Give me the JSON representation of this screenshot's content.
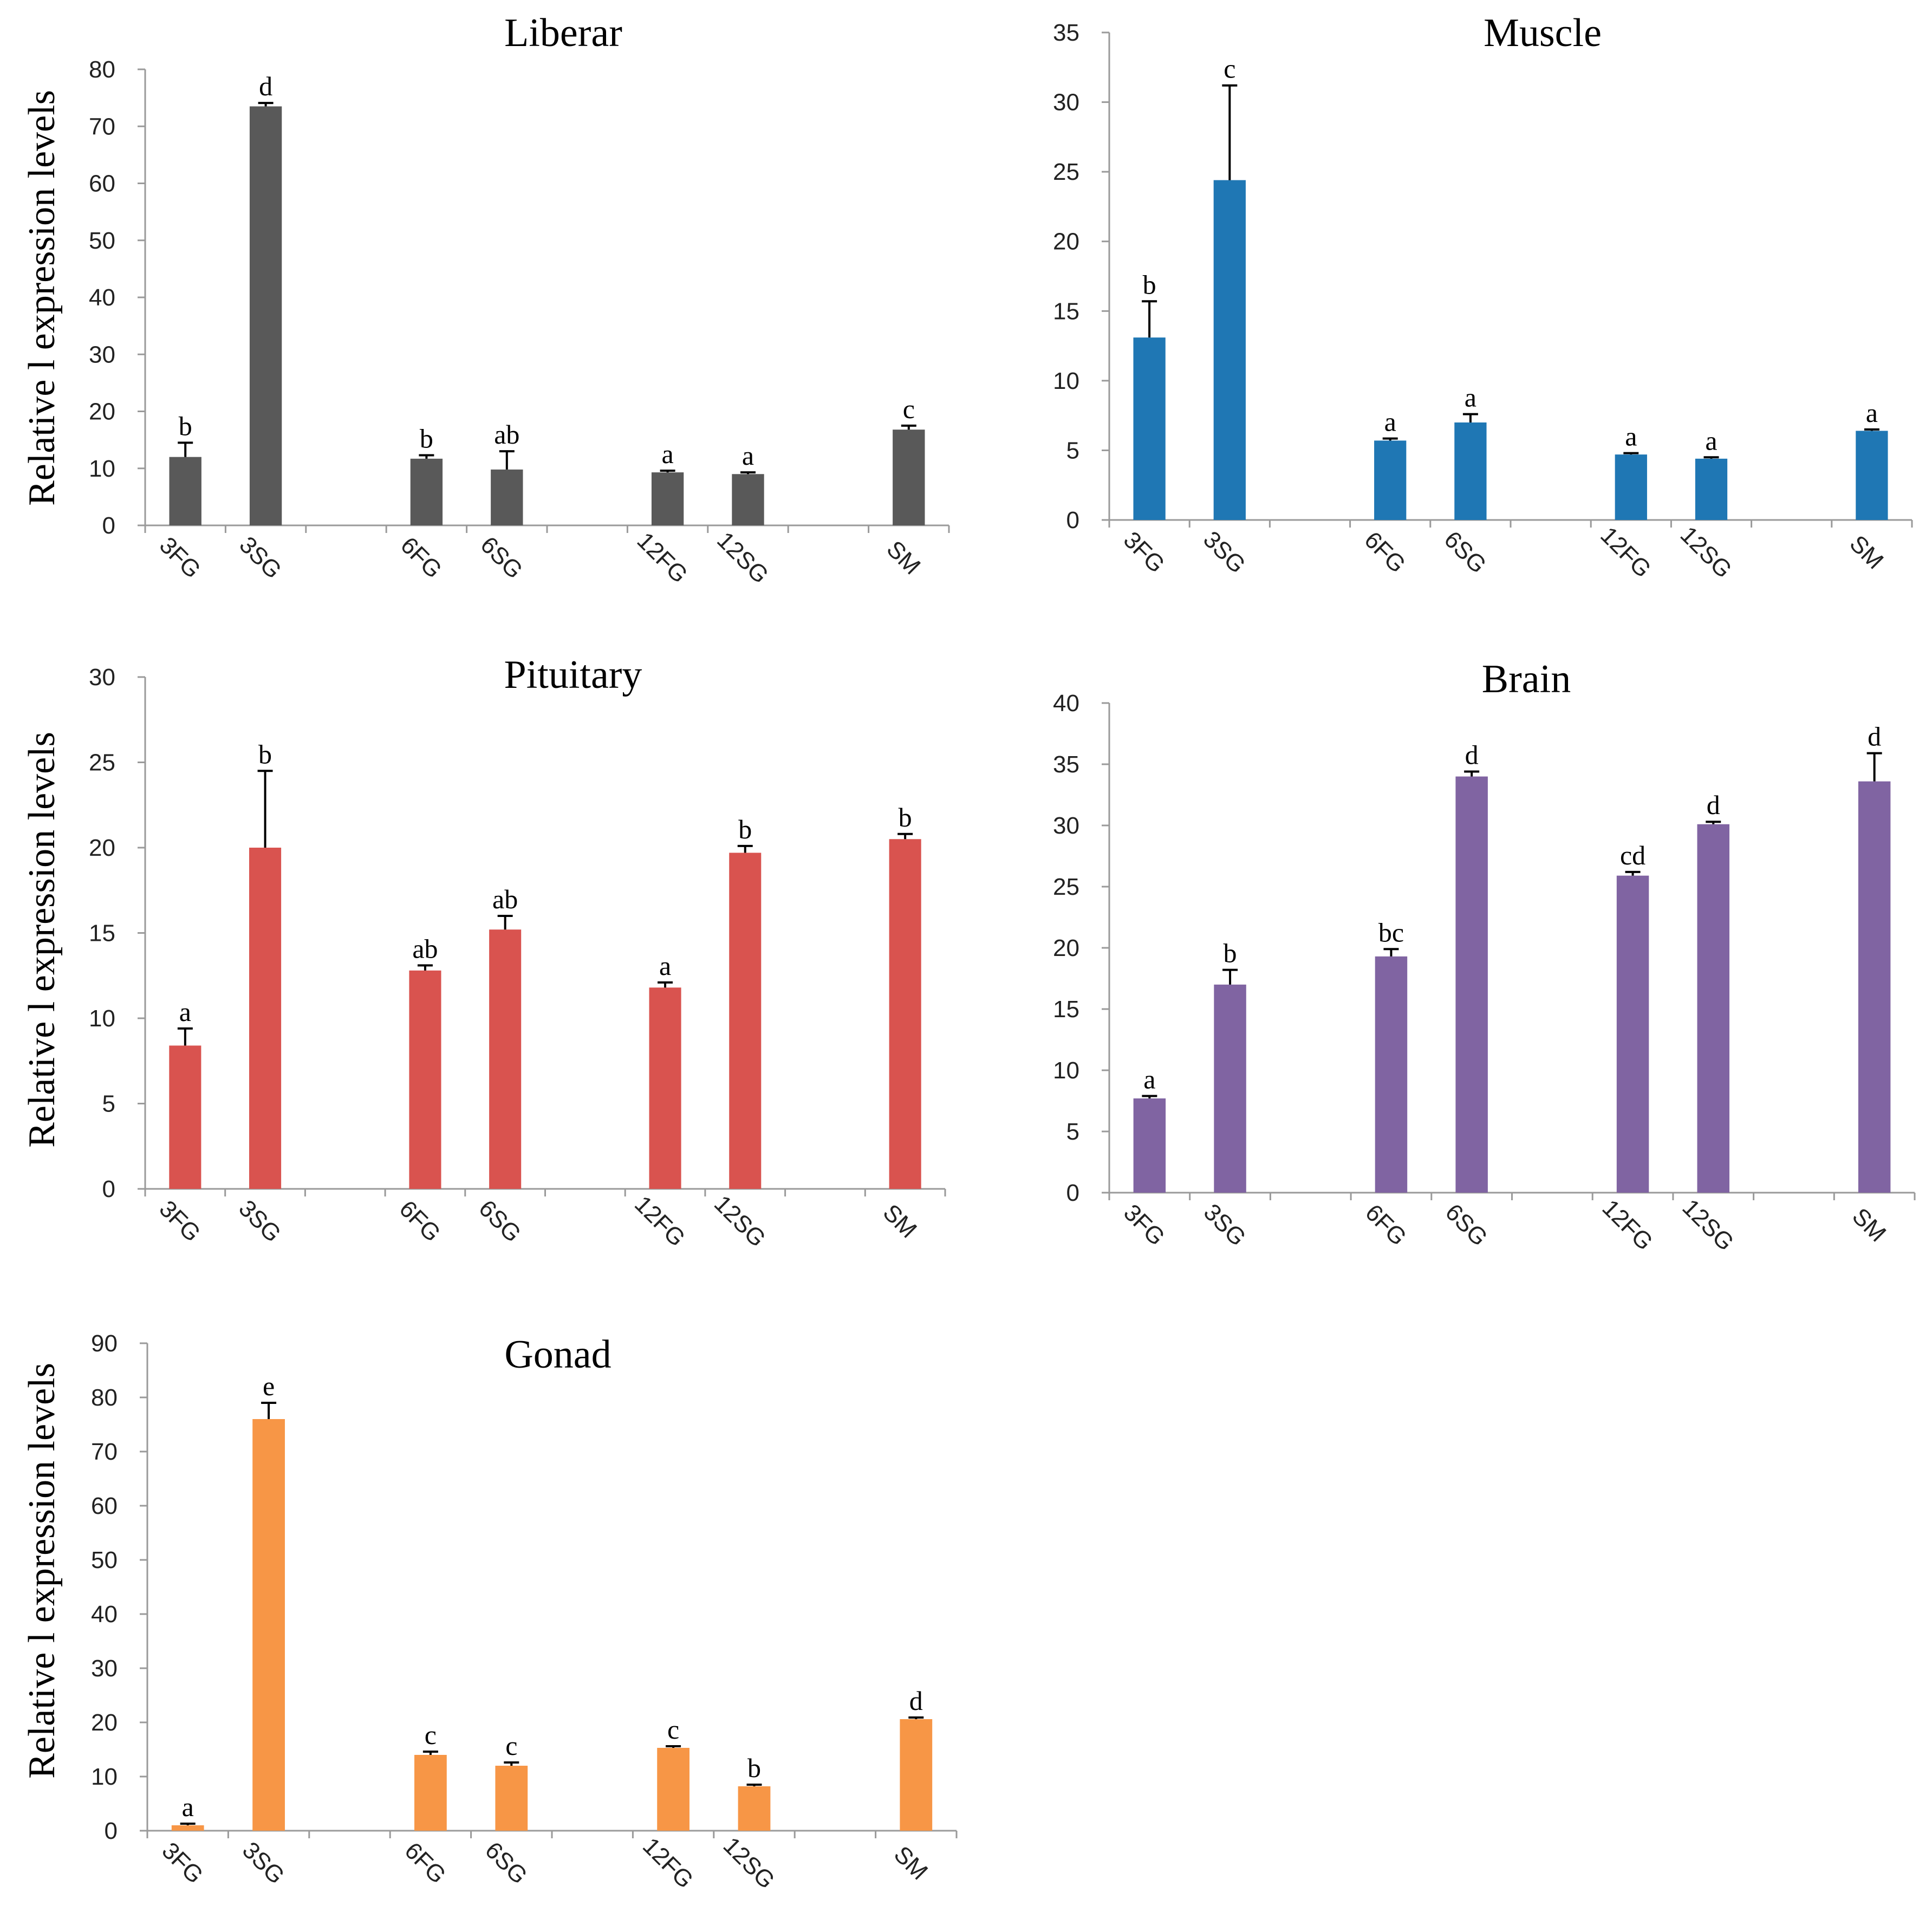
{
  "chart_data": [
    {
      "type": "bar",
      "title": "Liberar",
      "ylabel": "Relative l expression levels",
      "categories": [
        "3FG",
        "3SG",
        "",
        "6FG",
        "6SG",
        "",
        "12FG",
        "12SG",
        "",
        "SM"
      ],
      "values": [
        12,
        73.5,
        null,
        11.7,
        9.8,
        null,
        9.3,
        9.0,
        null,
        16.8
      ],
      "errors": [
        2.5,
        0.6,
        null,
        0.6,
        3.2,
        null,
        0.3,
        0.3,
        null,
        0.7
      ],
      "letters": [
        "b",
        "d",
        "",
        "b",
        "ab",
        "",
        "a",
        "a",
        "",
        "c"
      ],
      "yticks": [
        0,
        10,
        20,
        30,
        40,
        50,
        60,
        70,
        80
      ],
      "ylim": [
        0,
        80
      ],
      "color": "#595959"
    },
    {
      "type": "bar",
      "title": "Muscle",
      "ylabel": "",
      "categories": [
        "3FG",
        "3SG",
        "",
        "6FG",
        "6SG",
        "",
        "12FG",
        "12SG",
        "",
        "SM"
      ],
      "values": [
        13.1,
        24.4,
        null,
        5.7,
        7.0,
        null,
        4.7,
        4.4,
        null,
        6.4
      ],
      "errors": [
        2.6,
        6.8,
        null,
        0.15,
        0.6,
        null,
        0.1,
        0.1,
        null,
        0.1
      ],
      "letters": [
        "b",
        "c",
        "",
        "a",
        "a",
        "",
        "a",
        "a",
        "",
        "a"
      ],
      "yticks": [
        0,
        5,
        10,
        15,
        20,
        25,
        30,
        35
      ],
      "ylim": [
        0,
        35
      ],
      "color": "#1f77b4"
    },
    {
      "type": "bar",
      "title": "Pituitary",
      "ylabel": "Relative l expression levels",
      "categories": [
        "3FG",
        "3SG",
        "",
        "6FG",
        "6SG",
        "",
        "12FG",
        "12SG",
        "",
        "SM"
      ],
      "values": [
        8.4,
        20.0,
        null,
        12.8,
        15.2,
        null,
        11.8,
        19.7,
        null,
        20.5
      ],
      "errors": [
        1.0,
        4.5,
        null,
        0.3,
        0.8,
        null,
        0.3,
        0.4,
        null,
        0.3
      ],
      "letters": [
        "a",
        "b",
        "",
        "ab",
        "ab",
        "",
        "a",
        "b",
        "",
        "b"
      ],
      "yticks": [
        0,
        5,
        10,
        15,
        20,
        25,
        30
      ],
      "ylim": [
        0,
        30
      ],
      "color": "#d9534f"
    },
    {
      "type": "bar",
      "title": "Brain",
      "ylabel": "",
      "categories": [
        "3FG",
        "3SG",
        "",
        "6FG",
        "6SG",
        "",
        "12FG",
        "12SG",
        "",
        "SM"
      ],
      "values": [
        7.7,
        17.0,
        null,
        19.3,
        34.0,
        null,
        25.9,
        30.1,
        null,
        33.6
      ],
      "errors": [
        0.2,
        1.2,
        null,
        0.6,
        0.4,
        null,
        0.3,
        0.2,
        null,
        2.3
      ],
      "letters": [
        "a",
        "b",
        "",
        "bc",
        "d",
        "",
        "cd",
        "d",
        "",
        "d"
      ],
      "yticks": [
        0,
        5,
        10,
        15,
        20,
        25,
        30,
        35,
        40
      ],
      "ylim": [
        0,
        40
      ],
      "color": "#8064a2"
    },
    {
      "type": "bar",
      "title": "Gonad",
      "ylabel": "Relative l expression levels",
      "categories": [
        "3FG",
        "3SG",
        "",
        "6FG",
        "6SG",
        "",
        "12FG",
        "12SG",
        "",
        "SM"
      ],
      "values": [
        1.0,
        76.0,
        null,
        14.0,
        12.0,
        null,
        15.3,
        8.2,
        null,
        20.6
      ],
      "errors": [
        0.3,
        3.0,
        null,
        0.6,
        0.6,
        null,
        0.3,
        0.3,
        null,
        0.3
      ],
      "letters": [
        "a",
        "e",
        "",
        "c",
        "c",
        "",
        "c",
        "b",
        "",
        "d"
      ],
      "yticks": [
        0,
        10,
        20,
        30,
        40,
        50,
        60,
        70,
        80,
        90
      ],
      "ylim": [
        0,
        90
      ],
      "color": "#f79646"
    }
  ]
}
